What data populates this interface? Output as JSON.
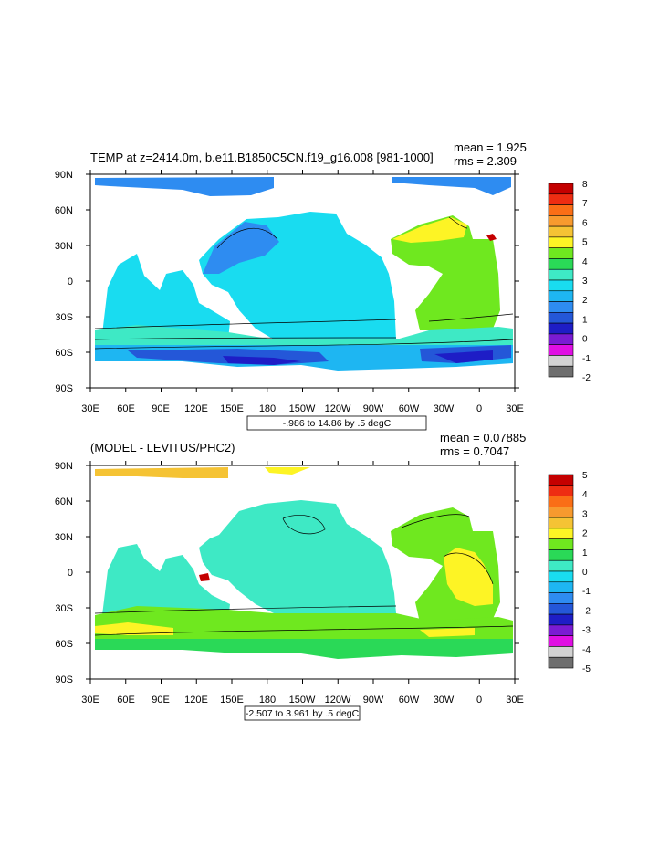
{
  "chart_data": [
    {
      "type": "heatmap",
      "title": "TEMP at z=2414.0m, b.e11.B1850C5CN.f19_g16.008 [981-1000]",
      "mean_label": "mean = 1.925",
      "rms_label": "rms = 2.309",
      "contour_info": "-.986 to 14.86 by .5 degC",
      "x_ticks": [
        "30E",
        "60E",
        "90E",
        "120E",
        "150E",
        "180",
        "150W",
        "120W",
        "90W",
        "60W",
        "30W",
        "0",
        "30E"
      ],
      "y_ticks": [
        "90N",
        "60N",
        "30N",
        "0",
        "30S",
        "60S",
        "90S"
      ],
      "colorbar": {
        "labels": [
          "8",
          "7",
          "6",
          "5",
          "4",
          "3",
          "2",
          "1",
          "0",
          "-1",
          "-2"
        ],
        "colors": [
          "#c40000",
          "#ee2d12",
          "#fa6e16",
          "#f79a2e",
          "#f5c334",
          "#fdf425",
          "#6fe81f",
          "#2ad957",
          "#3ee9c5",
          "#19dcf0",
          "#1eb6f2",
          "#2e8cf1",
          "#2457d8",
          "#1e1dc6",
          "#7a1bd3",
          "#e00fe3",
          "#d2d2d2",
          "#6e6e6e"
        ]
      },
      "fields": {
        "arctic": "#2e8cf1",
        "north_atlantic": "#6fe81f",
        "atlantic_pocket": "#fdf425",
        "pacific_north": "#19dcf0",
        "nw_pacific": "#2e8cf1",
        "south_band": "#3ee9c5",
        "southern_1": "#1eb6f2",
        "southern_2": "#2457d8",
        "southern_deep": "#1e1dc6",
        "med": "#c40000"
      }
    },
    {
      "type": "heatmap",
      "title": "(MODEL - LEVITUS/PHC2)",
      "mean_label": "mean = 0.07885",
      "rms_label": "rms = 0.7047",
      "contour_info": "-2.507 to 3.961 by .5 degC",
      "x_ticks": [
        "30E",
        "60E",
        "90E",
        "120E",
        "150E",
        "180",
        "150W",
        "120W",
        "90W",
        "60W",
        "30W",
        "0",
        "30E"
      ],
      "y_ticks": [
        "90N",
        "60N",
        "30N",
        "0",
        "30S",
        "60S",
        "90S"
      ],
      "colorbar": {
        "labels": [
          "5",
          "4",
          "3",
          "2",
          "1",
          "0",
          "-1",
          "-2",
          "-3",
          "-4",
          "-5"
        ],
        "colors": [
          "#c40000",
          "#ee2d12",
          "#fa6e16",
          "#f79a2e",
          "#f5c334",
          "#fdf425",
          "#6fe81f",
          "#2ad957",
          "#3ee9c5",
          "#19dcf0",
          "#1eb6f2",
          "#2e8cf1",
          "#2457d8",
          "#1e1dc6",
          "#7a1bd3",
          "#e00fe3",
          "#d2d2d2",
          "#6e6e6e"
        ]
      },
      "fields": {
        "arctic": "#f5c334",
        "north_atlantic": "#6fe81f",
        "atlantic_pocket": "#fdf425",
        "pacific_north": "#3ee9c5",
        "nw_pacific": "#3ee9c5",
        "south_band": "#6fe81f",
        "southern_1": "#2ad957",
        "southern_2": "#6fe81f",
        "southern_deep": "#fdf425",
        "med": "#c40000"
      }
    }
  ]
}
